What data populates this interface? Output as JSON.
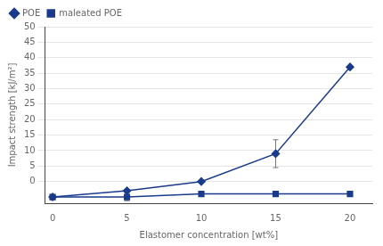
{
  "chart_data": {
    "type": "line",
    "x": [
      0,
      5,
      10,
      15,
      20
    ],
    "series": [
      {
        "name": "POE",
        "color": "#1a3a8c",
        "marker": "diamond",
        "values": [
          -5,
          -3,
          0,
          9,
          37
        ],
        "yerr": [
          0,
          0,
          0,
          4.5,
          0
        ]
      },
      {
        "name": "maleated POE",
        "color": "#1a3a8c",
        "marker": "square",
        "values": [
          -5,
          -5,
          -4,
          -4,
          -4
        ],
        "yerr": [
          0,
          1.2,
          0,
          0.8,
          0
        ]
      }
    ],
    "xlabel": "Elastomer concentration [wt%]",
    "ylabel": "Impact strength [kJ/m²]",
    "xlim": [
      -0.5,
      21.5
    ],
    "ylim": [
      -7,
      50
    ],
    "xticks": [
      0,
      5,
      10,
      15,
      20
    ],
    "yticks": [
      0,
      5,
      10,
      15,
      20,
      25,
      30,
      35,
      40,
      45,
      50
    ],
    "grid": "y",
    "legend": "upper left"
  }
}
